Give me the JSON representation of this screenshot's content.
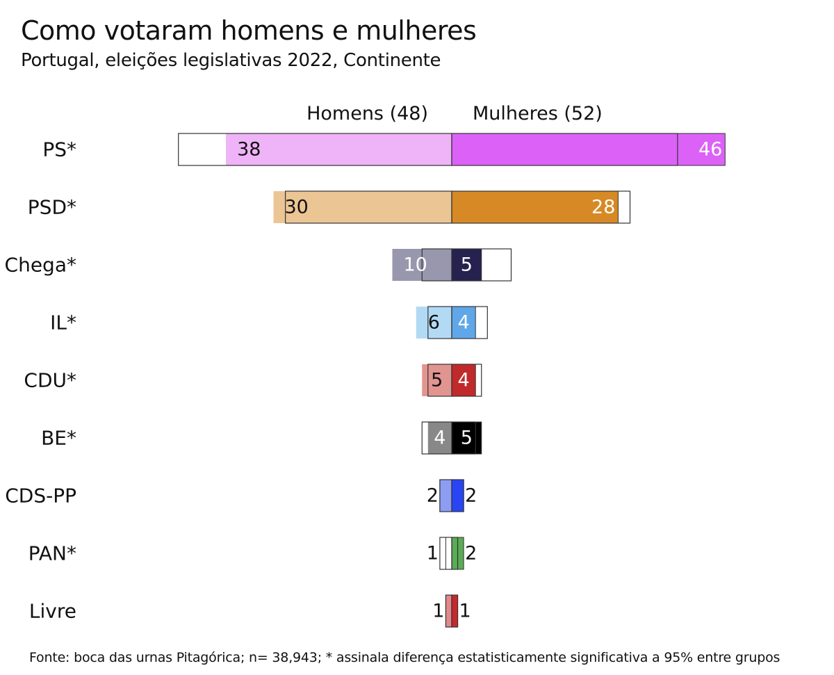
{
  "title": "Como votaram homens e mulheres",
  "subtitle": "Portugal, eleições legislativas 2022, Continente",
  "source": "Fonte: boca das urnas Pitagórica; n= 38,943; * assinala diferença estatisticamente significativa a 95% entre grupos",
  "chart_data": {
    "type": "bar",
    "orientation": "diverging-horizontal",
    "series": [
      {
        "name": "Homens (48)",
        "values": [
          38,
          30,
          10,
          6,
          5,
          4,
          2,
          1,
          1
        ]
      },
      {
        "name": "Mulheres (52)",
        "values": [
          46,
          28,
          5,
          4,
          4,
          5,
          2,
          2,
          1
        ]
      }
    ],
    "categories": [
      "PS*",
      "PSD*",
      "Chega*",
      "IL*",
      "CDU*",
      "BE*",
      "CDS-PP",
      "PAN*",
      "Livre"
    ],
    "colors": {
      "homens": [
        "#efb3f7",
        "#ecc594",
        "#9897ad",
        "#b3daf5",
        "#e29490",
        "#888888",
        "#8c9df2",
        "#ffffff",
        "#e3888b"
      ],
      "mulheres": [
        "#dc62f7",
        "#d68924",
        "#25224f",
        "#5fa7e8",
        "#c02a2a",
        "#000000",
        "#2845f5",
        "#5aac55",
        "#c9282d"
      ]
    },
    "value_label_colors": {
      "homens": [
        "#111111",
        "#111111",
        "#ffffff",
        "#111111",
        "#111111",
        "#ffffff",
        "#111111",
        "#111111",
        "#111111"
      ],
      "mulheres": [
        "#ffffff",
        "#ffffff",
        "#ffffff",
        "#ffffff",
        "#ffffff",
        "#ffffff",
        "#111111",
        "#111111",
        "#111111"
      ]
    },
    "value_labels_outside": [
      false,
      false,
      false,
      false,
      false,
      false,
      true,
      true,
      true
    ],
    "xlim": [
      -48,
      48
    ],
    "grid": false,
    "legend": "top-center"
  }
}
